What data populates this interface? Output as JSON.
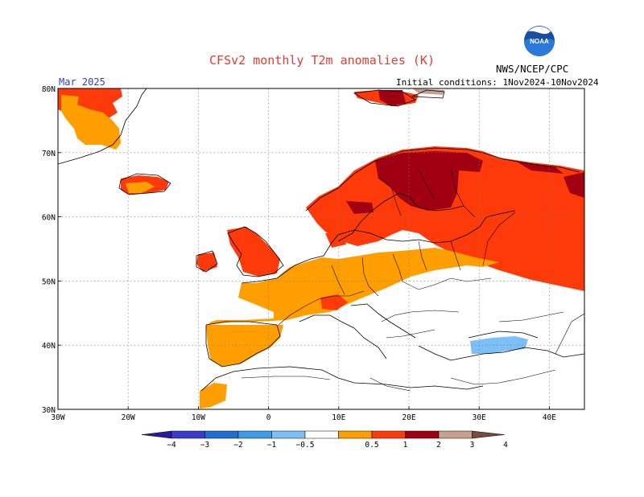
{
  "header": {
    "title": "CFSv2 monthly T2m anomalies (K)",
    "agency": "NWS/NCEP/CPC",
    "logo_text": "NOAA",
    "month": "Mar 2025",
    "initial_conditions": "Initial conditions: 1Nov2024-10Nov2024"
  },
  "map": {
    "lon_range": [
      -30,
      45
    ],
    "lat_range": [
      30,
      80
    ],
    "lon_ticks": [
      {
        "value": -30,
        "label": "30W"
      },
      {
        "value": -20,
        "label": "20W"
      },
      {
        "value": -10,
        "label": "10W"
      },
      {
        "value": 0,
        "label": "0"
      },
      {
        "value": 10,
        "label": "10E"
      },
      {
        "value": 20,
        "label": "20E"
      },
      {
        "value": 30,
        "label": "30E"
      },
      {
        "value": 40,
        "label": "40E"
      }
    ],
    "lat_ticks": [
      {
        "value": 30,
        "label": "30N"
      },
      {
        "value": 40,
        "label": "40N"
      },
      {
        "value": 50,
        "label": "50N"
      },
      {
        "value": 60,
        "label": "60N"
      },
      {
        "value": 70,
        "label": "70N"
      },
      {
        "value": 80,
        "label": "80N"
      }
    ],
    "gridlines": true
  },
  "colorbar": {
    "labels": [
      "−4",
      "−3",
      "−2",
      "−1",
      "−0.5",
      "0.5",
      "1",
      "2",
      "3",
      "4"
    ],
    "colors": [
      "#2a1a9e",
      "#3b3ccc",
      "#1f6fd1",
      "#3e9be8",
      "#7cc0f7",
      "#ffffff",
      "#ff9e00",
      "#ff3a0a",
      "#a00012",
      "#c8a090",
      "#7a4a3a"
    ]
  }
}
